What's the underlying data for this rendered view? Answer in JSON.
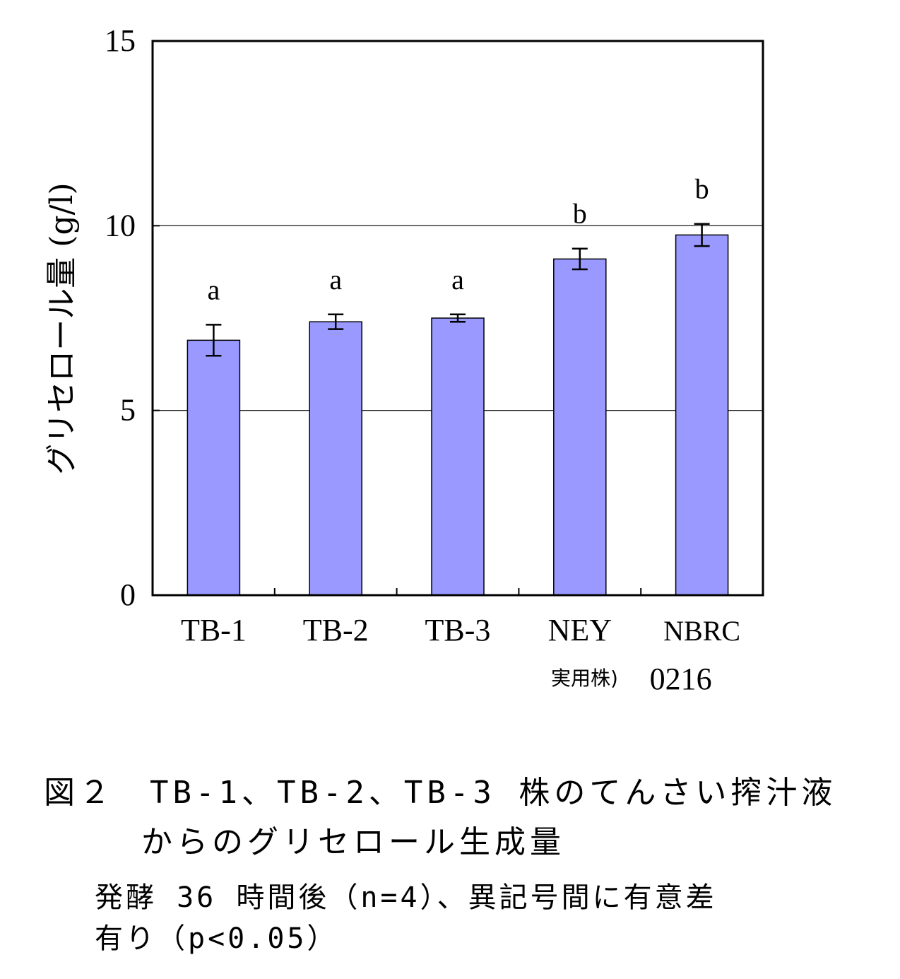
{
  "chart_data": {
    "type": "bar",
    "categories": [
      "TB-1",
      "TB-2",
      "TB-3",
      "NEY",
      "NBRC"
    ],
    "category_sublabels": [
      "",
      "",
      "",
      "実用株)",
      "0216"
    ],
    "values": [
      6.9,
      7.4,
      7.5,
      9.1,
      9.75
    ],
    "errors": [
      0.42,
      0.2,
      0.1,
      0.28,
      0.3
    ],
    "significance_letters": [
      "a",
      "a",
      "a",
      "b",
      "b"
    ],
    "ylabel": "グリセロール量 (g/l)",
    "xlabel": "",
    "ylim": [
      0,
      15
    ],
    "yticks": [
      "0",
      "5",
      "10",
      "15"
    ],
    "ytick_values": [
      0,
      5,
      10,
      15
    ],
    "gridlines_at": [
      5,
      10
    ],
    "grid": true,
    "legend": "none",
    "bar_color": "#9999ff",
    "bar_edge_color": "#000000"
  },
  "caption": {
    "line1": "図２　TB-1、TB-2、TB-3 株のてんさい搾汁液",
    "line2": "からのグリセロール生成量",
    "note_line1": "発酵 36 時間後（n=4）、異記号間に有意差",
    "note_line2": "有り（p<0.05）"
  }
}
